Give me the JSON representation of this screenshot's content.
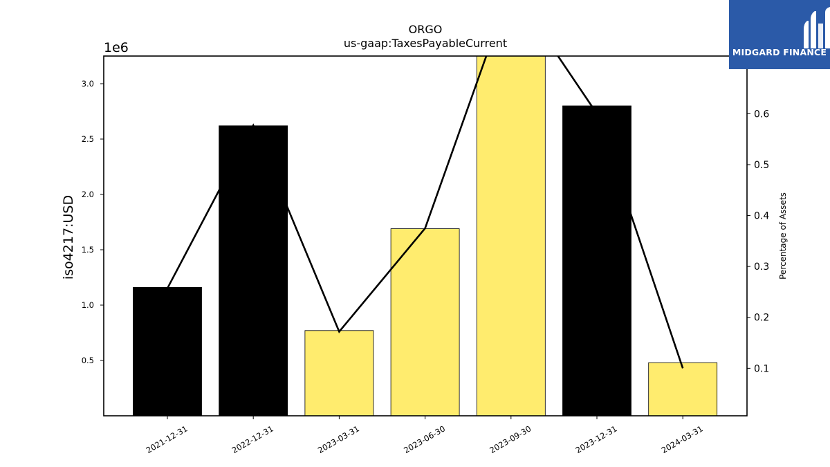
{
  "chart_data": {
    "type": "bar",
    "title": "ORGO",
    "subtitle": "us-gaap:TaxesPayableCurrent",
    "ylabel": "iso4217:USD",
    "y2label": "Percentage of Assets",
    "y_offset_text": "1e6",
    "categories": [
      "2021-12-31",
      "2022-12-31",
      "2023-03-31",
      "2023-06-30",
      "2023-09-30",
      "2023-12-31",
      "2024-03-31"
    ],
    "values": [
      1160000,
      2620000,
      770000,
      1690000,
      3500000,
      2800000,
      480000
    ],
    "bar_colors": [
      "#000000",
      "#000000",
      "#ffec6e",
      "#ffec6e",
      "#ffec6e",
      "#000000",
      "#ffec6e"
    ],
    "line_values": [
      0.257,
      0.577,
      0.172,
      0.375,
      0.85,
      0.6,
      0.1
    ],
    "line_color": "#000000",
    "ylim": [
      0,
      3250000
    ],
    "y2lim": [
      0.0067,
      0.7133
    ],
    "yticks": [
      500000,
      1000000,
      1500000,
      2000000,
      2500000,
      3000000
    ],
    "ytick_labels": [
      "0.5",
      "1.0",
      "1.5",
      "2.0",
      "2.5",
      "3.0"
    ],
    "y2ticks": [
      0.1,
      0.2,
      0.3,
      0.4,
      0.5,
      0.6
    ],
    "y2tick_labels": [
      "0.1",
      "0.2",
      "0.3",
      "0.4",
      "0.5",
      "0.6"
    ],
    "grid": false,
    "legend": "none"
  },
  "logo": {
    "text": "MIDGARD FINANCE",
    "icon": "midgard-logo-icon",
    "color": "#2b5aa8"
  }
}
